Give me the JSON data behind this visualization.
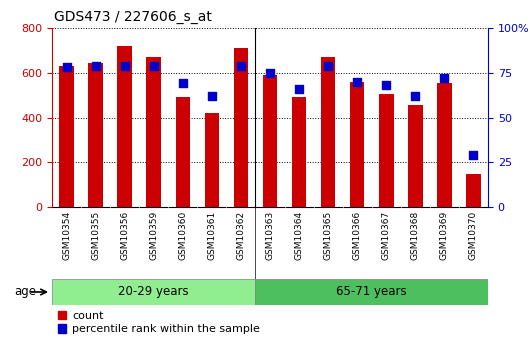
{
  "title": "GDS473 / 227606_s_at",
  "categories": [
    "GSM10354",
    "GSM10355",
    "GSM10356",
    "GSM10359",
    "GSM10360",
    "GSM10361",
    "GSM10362",
    "GSM10363",
    "GSM10364",
    "GSM10365",
    "GSM10366",
    "GSM10367",
    "GSM10368",
    "GSM10369",
    "GSM10370"
  ],
  "counts": [
    630,
    645,
    720,
    670,
    490,
    420,
    710,
    590,
    490,
    672,
    560,
    505,
    455,
    555,
    148
  ],
  "percentiles": [
    78,
    79,
    79,
    79,
    69,
    62,
    79,
    75,
    66,
    79,
    70,
    68,
    62,
    72,
    29
  ],
  "group1_label": "20-29 years",
  "group2_label": "65-71 years",
  "group1_count": 7,
  "group2_count": 8,
  "bar_color": "#CC0000",
  "dot_color": "#0000CC",
  "group1_bg": "#90EE90",
  "group2_bg": "#4EBF5E",
  "xtick_bg": "#C8C8C8",
  "ylim_left": [
    0,
    800
  ],
  "ylim_right": [
    0,
    100
  ],
  "yticks_left": [
    0,
    200,
    400,
    600,
    800
  ],
  "yticks_right": [
    0,
    25,
    50,
    75,
    100
  ],
  "ytick_labels_right": [
    "0",
    "25",
    "50",
    "75",
    "100%"
  ],
  "legend_count_label": "count",
  "legend_pct_label": "percentile rank within the sample",
  "age_label": "age"
}
